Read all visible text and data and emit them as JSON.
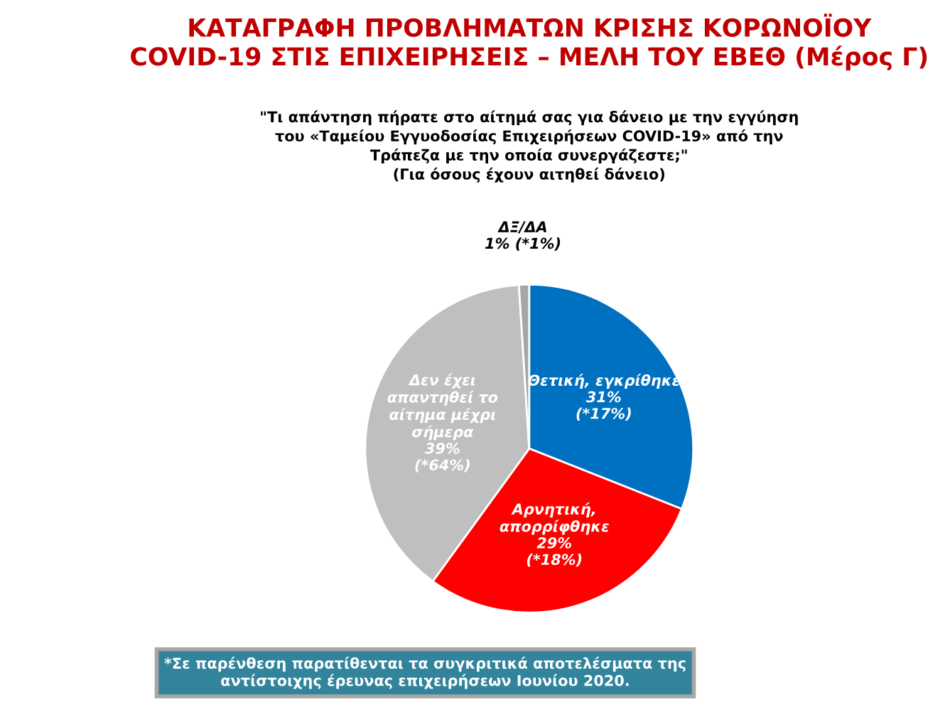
{
  "chart_data": {
    "type": "pie",
    "title": "ΚΑΤΑΓΡΑΦΗ ΠΡΟΒΛΗΜΑΤΩΝ ΚΡΙΣΗΣ ΚΟΡΩΝΟΪΟΥ\nCOVID-19 ΣΤΙΣ ΕΠΙΧΕΙΡΗΣΕΙΣ – ΜΕΛΗ ΤΟΥ ΕΒΕΘ (Μέρος Γ)",
    "subtitle": "\"Τι απάντηση πήρατε στο αίτημά σας για δάνειο με την εγγύηση\nτου «Ταμείου Εγγυοδοσίας Επιχειρήσεων COVID-19» από την\nΤράπεζα με την οποία συνεργάζεστε;\"\n(Για όσους έχουν αιτηθεί δάνειο)",
    "categories": [
      "Θετική, εγκρίθηκε",
      "Αρνητική,\nαπορρίφθηκε",
      "Δεν έχει\nαπαντηθεί το\nαίτημα μέχρι\nσήμερα",
      "ΔΞ/ΔΑ"
    ],
    "values": [
      31,
      29,
      39,
      1
    ],
    "value_labels": [
      "31%\n(*17%)",
      "29%\n(*18%)",
      "39%\n(*64%)",
      "1% (*1%)"
    ],
    "colors": [
      "#0070c0",
      "#ff0000",
      "#bfbfbf",
      "#a6a6a6"
    ],
    "annotations": [
      "*Σε παρένθεση παρατίθενται τα συγκριτικά αποτελέσματα της\nαντίστοιχης έρευνας επιχειρήσεων Ιουνίου 2020."
    ]
  }
}
